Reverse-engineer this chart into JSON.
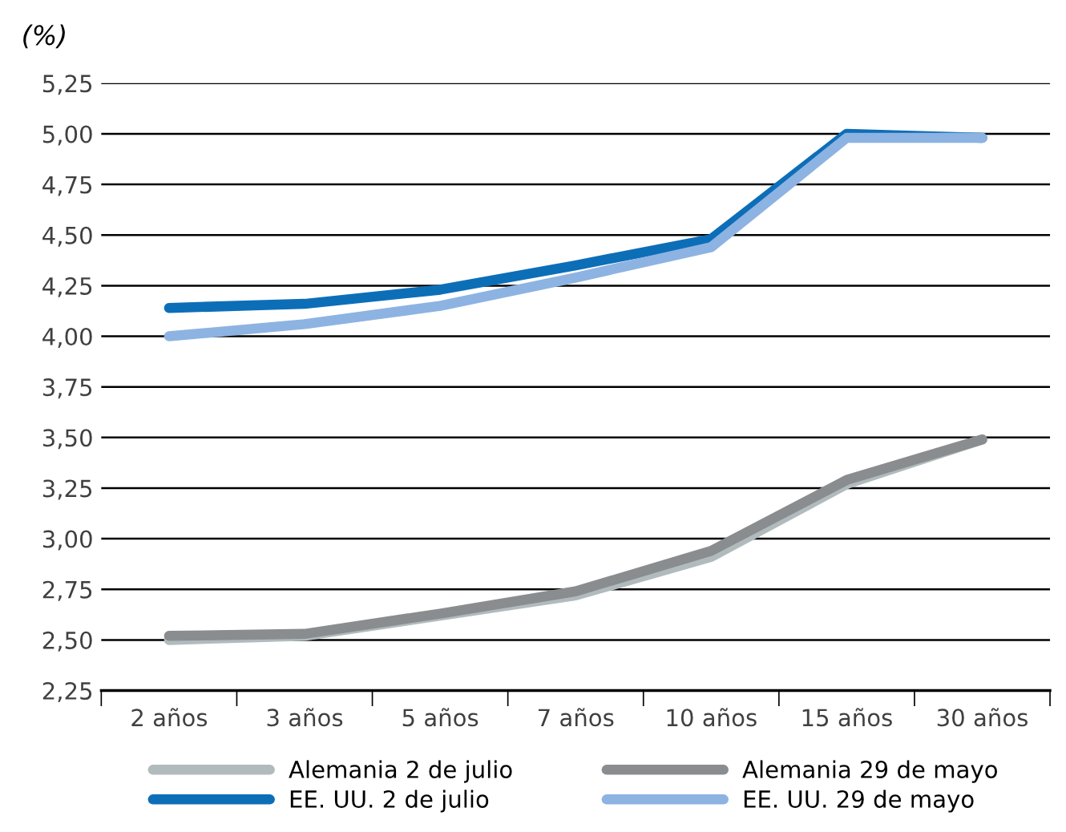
{
  "chart_data": {
    "type": "line",
    "ylabel": "(%)",
    "categories": [
      "2 años",
      "3 años",
      "5 años",
      "7 años",
      "10 años",
      "15 años",
      "30 años"
    ],
    "series": [
      {
        "name": "Alemania 2 de julio",
        "color": "#b1bbbd",
        "values": [
          2.5,
          2.52,
          2.62,
          2.72,
          2.91,
          3.27,
          3.49
        ]
      },
      {
        "name": "Alemania 29 de mayo",
        "color": "#8a8d8f",
        "values": [
          2.52,
          2.53,
          2.63,
          2.74,
          2.94,
          3.29,
          3.49
        ]
      },
      {
        "name": "EE. UU. 2 de julio",
        "color": "#0d6eb8",
        "values": [
          4.14,
          4.16,
          4.23,
          4.35,
          4.48,
          5.0,
          4.98
        ]
      },
      {
        "name": "EE. UU. 29 de mayo",
        "color": "#8db3e2",
        "values": [
          4.0,
          4.06,
          4.15,
          4.29,
          4.44,
          4.98,
          4.98
        ]
      }
    ],
    "ylim": [
      2.25,
      5.25
    ],
    "yticks": [
      {
        "value": 2.25,
        "label": "2,25"
      },
      {
        "value": 2.5,
        "label": "2,50"
      },
      {
        "value": 2.75,
        "label": "2,75"
      },
      {
        "value": 3.0,
        "label": "3,00"
      },
      {
        "value": 3.25,
        "label": "3,25"
      },
      {
        "value": 3.5,
        "label": "3,50"
      },
      {
        "value": 3.75,
        "label": "3,75"
      },
      {
        "value": 4.0,
        "label": "4,00"
      },
      {
        "value": 4.25,
        "label": "4,25"
      },
      {
        "value": 4.5,
        "label": "4,50"
      },
      {
        "value": 4.75,
        "label": "4,75"
      },
      {
        "value": 5.0,
        "label": "5,00"
      },
      {
        "value": 5.25,
        "label": "5,25"
      }
    ],
    "grid": "y",
    "legend": "bottom",
    "marker": "none",
    "line_style": "solid"
  }
}
